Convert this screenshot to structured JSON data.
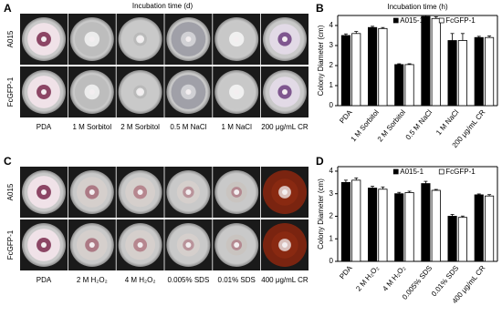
{
  "panels": {
    "A": {
      "letter": "A",
      "title": "Incubation time (d)",
      "rows": [
        "A015",
        "FcGFP-1"
      ],
      "columns": [
        "PDA",
        "1 M Sorbitol",
        "2 M Sorbitol",
        "0.5 M NaCl",
        "1 M NaCl",
        "200 μg/mL CR"
      ]
    },
    "B": {
      "letter": "B"
    },
    "C": {
      "letter": "C",
      "rows": [
        "A015",
        "FcGFP-1"
      ],
      "columns": [
        "PDA",
        "2 M H₂O₂",
        "4 M H₂O₂",
        "0.005% SDS",
        "0.01% SDS",
        "400 μg/mL CR"
      ]
    },
    "D": {
      "letter": "D"
    }
  },
  "chart_data": [
    {
      "type": "bar",
      "title": "Incubation time (h)",
      "y_label": "Colony Diameter (cm)",
      "categories": [
        "PDA",
        "1 M Sorbitol",
        "2 M Sorbitol",
        "0.5 M NaCl",
        "1 M NaCl",
        "200 μg/mL CR"
      ],
      "series": [
        {
          "name": "A015-1",
          "color": "#000000",
          "values": [
            3.5,
            3.9,
            2.05,
            4.45,
            3.25,
            3.4
          ],
          "errors": [
            0.08,
            0.06,
            0.04,
            0.05,
            0.35,
            0.06
          ]
        },
        {
          "name": "FcGFP-1",
          "color": "#ffffff",
          "values": [
            3.6,
            3.85,
            2.05,
            4.35,
            3.25,
            3.4
          ],
          "errors": [
            0.1,
            0.05,
            0.04,
            0.08,
            0.35,
            0.08
          ]
        }
      ],
      "ylim": [
        0,
        4.5
      ],
      "yticks": [
        0,
        1,
        2,
        3,
        4
      ],
      "legend": "top"
    },
    {
      "type": "bar",
      "y_label": "Colony Diameter (cm)",
      "categories": [
        "PDA",
        "2 M H₂O₂",
        "4 M H₂O₂",
        "0.005% SDS",
        "0.01% SDS",
        "400 μg/mL CR"
      ],
      "series": [
        {
          "name": "A015-1",
          "color": "#000000",
          "values": [
            3.5,
            3.25,
            3.0,
            3.45,
            2.0,
            2.95
          ],
          "errors": [
            0.1,
            0.08,
            0.06,
            0.1,
            0.08,
            0.04
          ]
        },
        {
          "name": "FcGFP-1",
          "color": "#ffffff",
          "values": [
            3.6,
            3.2,
            3.05,
            3.15,
            1.95,
            2.9
          ],
          "errors": [
            0.1,
            0.1,
            0.06,
            0.04,
            0.06,
            0.06
          ]
        }
      ],
      "ylim": [
        0,
        4.2
      ],
      "yticks": [
        0,
        1,
        2,
        3,
        4
      ],
      "legend": "top"
    }
  ]
}
